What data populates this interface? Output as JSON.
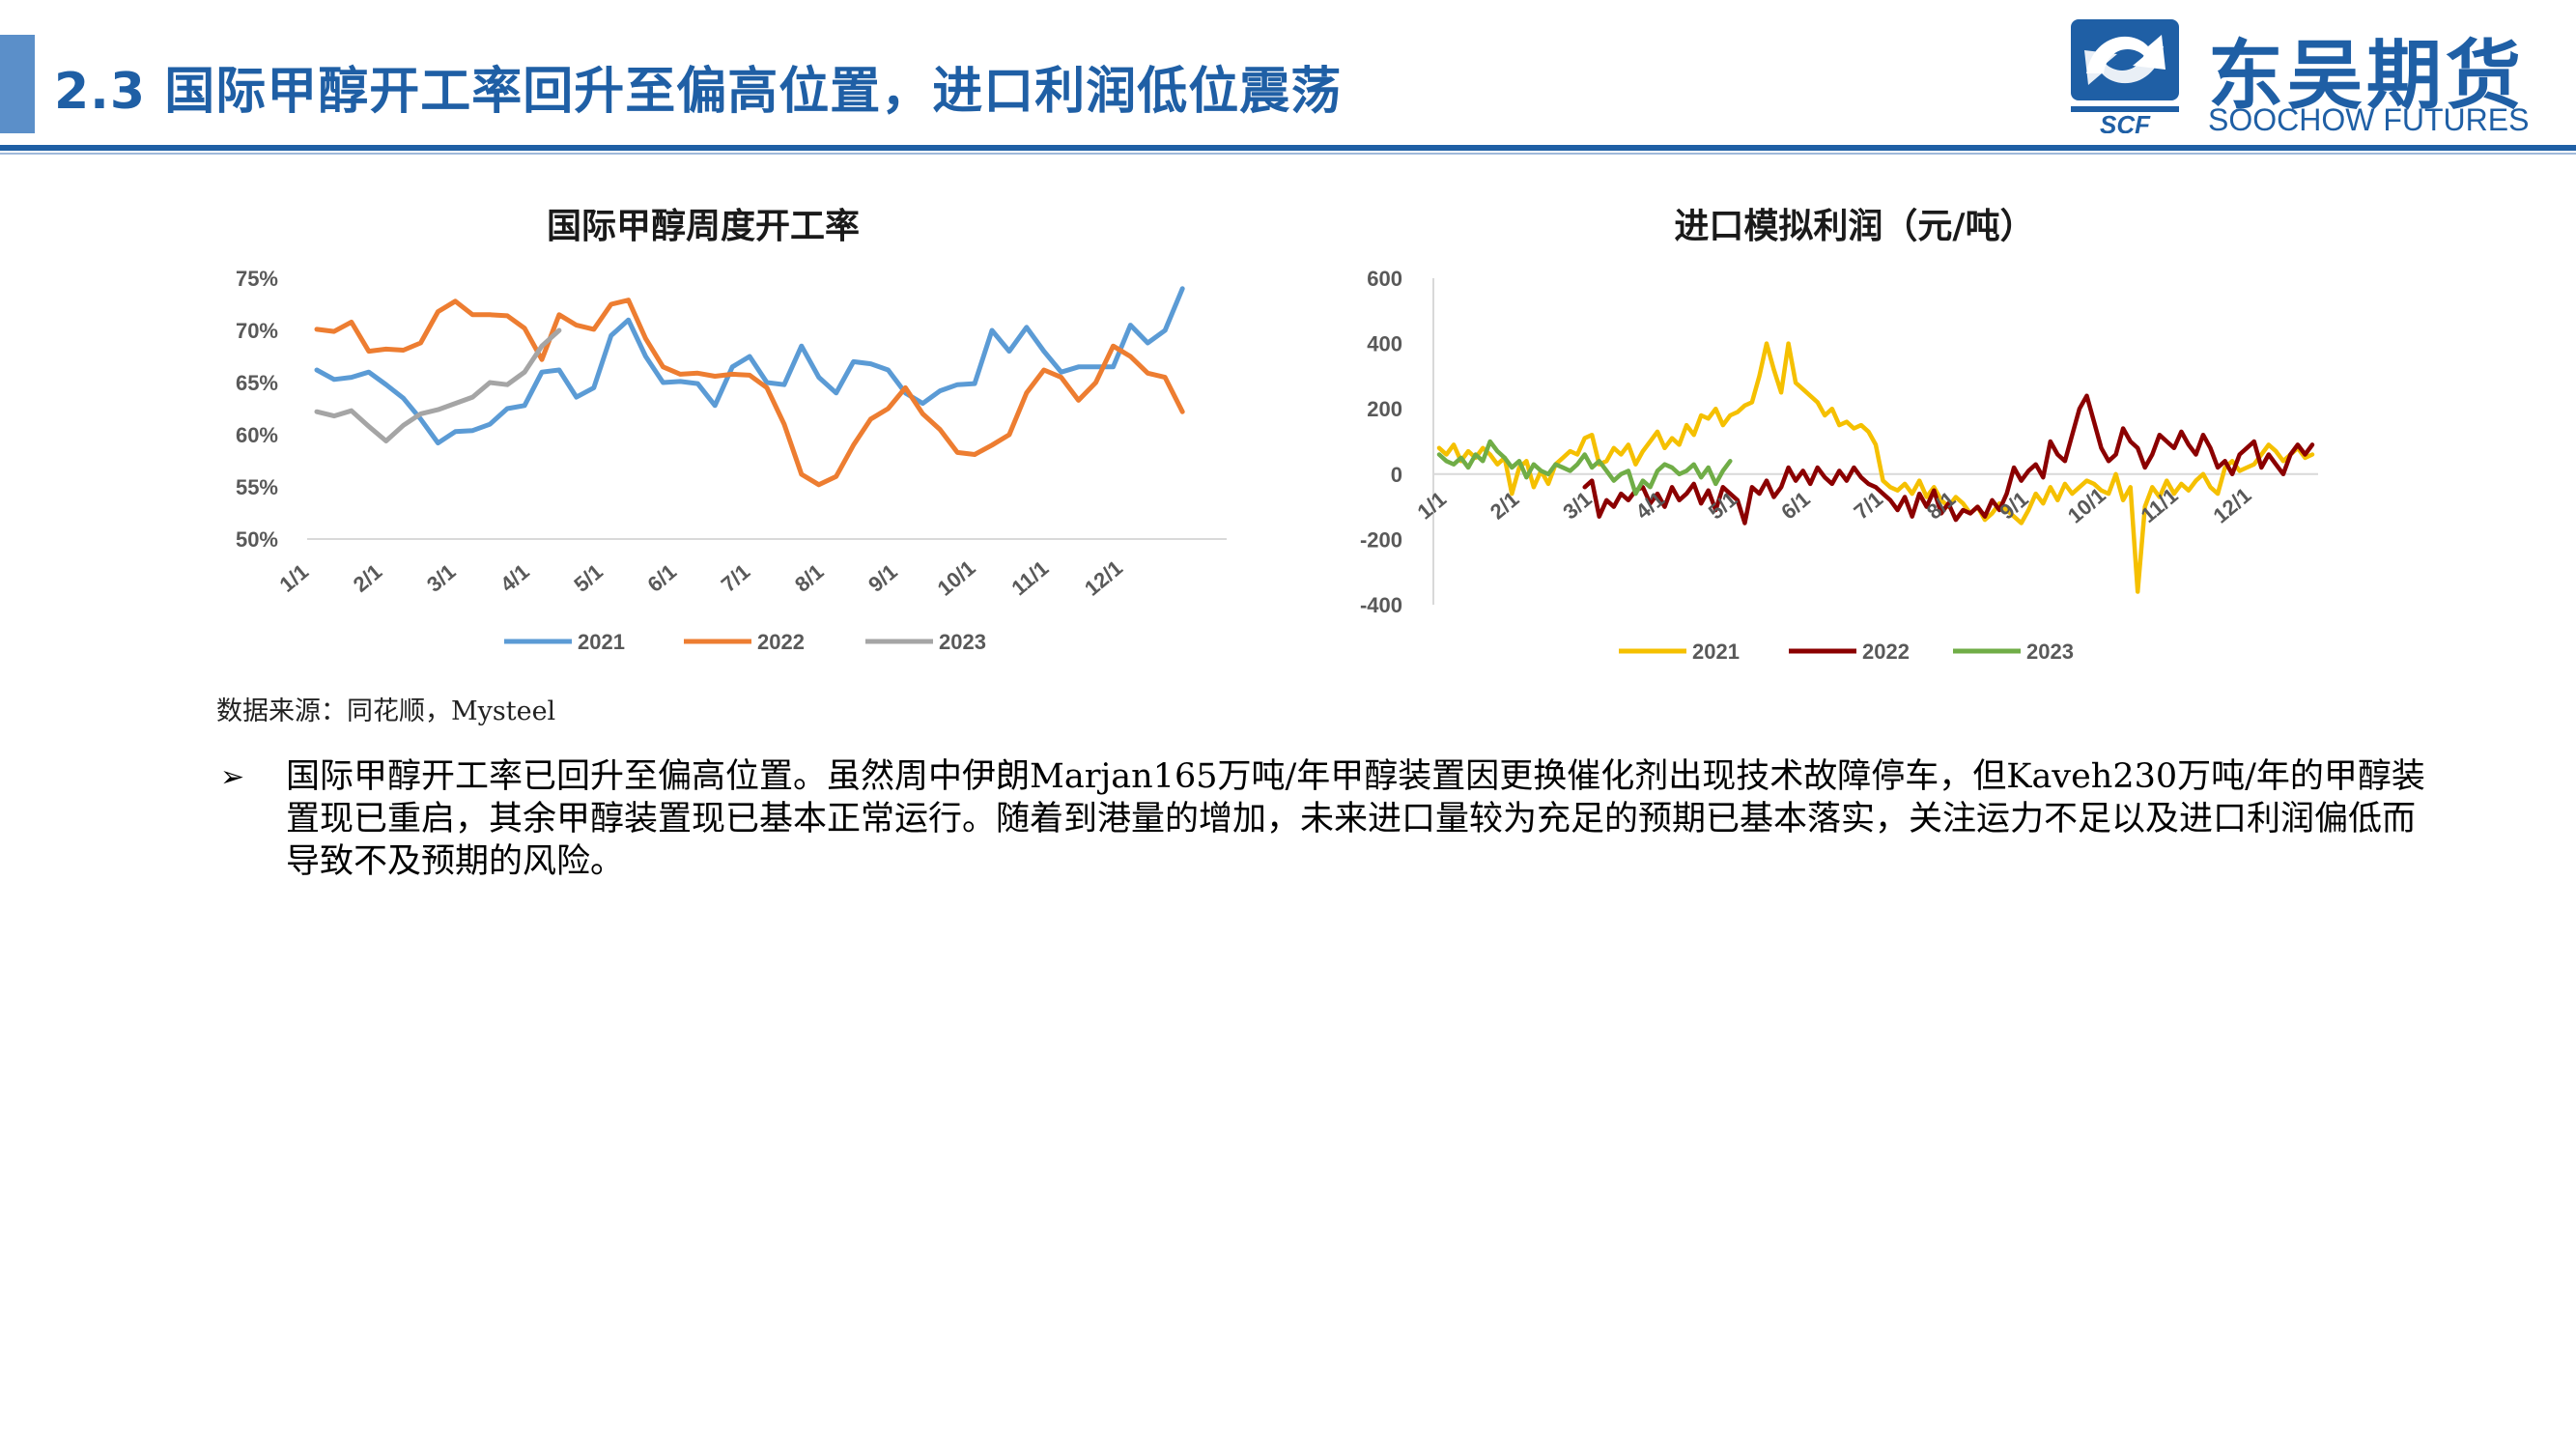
{
  "header": {
    "title": "2.3 国际甲醇开工率回升至偏高位置，进口利润低位震荡",
    "accent_color": "#1f5fa5"
  },
  "logo": {
    "cn_text": "东吴期货",
    "en_text": "SOOCHOW FUTURES",
    "mark_text": "SCF",
    "color": "#1f5fa5"
  },
  "chart_data": [
    {
      "type": "line",
      "title": "国际甲醇周度开工率",
      "xlabel": "",
      "ylabel": "",
      "x_ticks": [
        "1/1",
        "2/1",
        "3/1",
        "4/1",
        "5/1",
        "6/1",
        "7/1",
        "8/1",
        "9/1",
        "10/1",
        "11/1",
        "12/1"
      ],
      "y_ticks": [
        "75%",
        "70%",
        "65%",
        "60%",
        "55%",
        "50%"
      ],
      "ylim": [
        50,
        75
      ],
      "x_unit": "week",
      "xlim": [
        1,
        53
      ],
      "grid": false,
      "legend_position": "bottom",
      "series": [
        {
          "name": "2021",
          "color": "#5b9bd5",
          "values": [
            66.2,
            65.3,
            65.5,
            66.0,
            64.8,
            63.5,
            61.5,
            59.2,
            60.3,
            60.4,
            61.0,
            62.5,
            62.8,
            66.0,
            66.2,
            63.6,
            64.5,
            69.5,
            71.0,
            67.5,
            65.0,
            65.1,
            64.9,
            62.8,
            66.5,
            67.5,
            65.0,
            64.8,
            68.5,
            65.5,
            64.0,
            67.0,
            66.8,
            66.2,
            64.0,
            63.0,
            64.2,
            64.8,
            64.9,
            70.0,
            68.0,
            70.3,
            68.0,
            66.0,
            66.5,
            66.5,
            66.5,
            70.5,
            68.8,
            70.0,
            74.0
          ]
        },
        {
          "name": "2022",
          "color": "#ed7d31",
          "values": [
            70.1,
            69.9,
            70.8,
            68.0,
            68.2,
            68.1,
            68.8,
            71.8,
            72.8,
            71.5,
            71.5,
            71.4,
            70.2,
            67.2,
            71.5,
            70.5,
            70.1,
            72.5,
            72.9,
            69.2,
            66.5,
            65.8,
            65.9,
            65.6,
            65.8,
            65.7,
            64.5,
            61.0,
            56.2,
            55.2,
            56.0,
            59.0,
            61.5,
            62.5,
            64.5,
            62.0,
            60.5,
            58.3,
            58.1,
            59.0,
            60.0,
            64.0,
            66.2,
            65.5,
            63.3,
            65.0,
            68.5,
            67.5,
            65.9,
            65.5,
            62.2
          ]
        },
        {
          "name": "2023",
          "color": "#a5a5a5",
          "values": [
            62.2,
            61.8,
            62.3,
            60.8,
            59.4,
            60.9,
            62.0,
            62.4,
            63.0,
            63.6,
            65.0,
            64.8,
            66.0,
            68.5,
            70.0
          ]
        }
      ]
    },
    {
      "type": "line",
      "title": "进口模拟利润（元/吨）",
      "xlabel": "",
      "ylabel": "",
      "x_ticks": [
        "1/1",
        "2/1",
        "3/1",
        "4/1",
        "5/1",
        "6/1",
        "7/1",
        "8/1",
        "9/1",
        "10/1",
        "11/1",
        "12/1"
      ],
      "y_ticks": [
        "600",
        "400",
        "200",
        "0",
        "-200",
        "-400"
      ],
      "ylim": [
        -400,
        600
      ],
      "x_unit": "month",
      "xlim": [
        1,
        13
      ],
      "grid": false,
      "legend_position": "bottom",
      "series": [
        {
          "name": "2021",
          "color": "#f5c000",
          "x": [
            1.0,
            1.1,
            1.2,
            1.3,
            1.4,
            1.5,
            1.6,
            1.7,
            1.8,
            1.9,
            2.0,
            2.1,
            2.2,
            2.3,
            2.4,
            2.5,
            2.6,
            2.7,
            2.8,
            2.9,
            3.0,
            3.1,
            3.2,
            3.3,
            3.4,
            3.5,
            3.6,
            3.7,
            3.8,
            3.9,
            4.0,
            4.1,
            4.2,
            4.3,
            4.4,
            4.5,
            4.6,
            4.7,
            4.8,
            4.9,
            5.0,
            5.1,
            5.2,
            5.3,
            5.4,
            5.5,
            5.6,
            5.7,
            5.8,
            5.9,
            6.0,
            6.1,
            6.2,
            6.3,
            6.4,
            6.5,
            6.6,
            6.7,
            6.8,
            6.9,
            7.0,
            7.1,
            7.2,
            7.3,
            7.4,
            7.5,
            7.6,
            7.7,
            7.8,
            7.9,
            8.0,
            8.1,
            8.2,
            8.3,
            8.4,
            8.5,
            8.6,
            8.7,
            8.8,
            8.9,
            9.0,
            9.1,
            9.2,
            9.3,
            9.4,
            9.5,
            9.6,
            9.7,
            9.8,
            9.9,
            10.0,
            10.1,
            10.2,
            10.3,
            10.4,
            10.5,
            10.6,
            10.7,
            10.8,
            10.9,
            11.0,
            11.1,
            11.2,
            11.3,
            11.4,
            11.5,
            11.6,
            11.7,
            11.8,
            11.9,
            12.0,
            12.1,
            12.2,
            12.3,
            12.4,
            12.5,
            12.6,
            12.7,
            12.8,
            12.9,
            13.0
          ],
          "values": [
            80,
            60,
            90,
            40,
            70,
            50,
            80,
            60,
            30,
            50,
            -60,
            20,
            40,
            -40,
            10,
            -30,
            30,
            50,
            70,
            60,
            110,
            120,
            30,
            40,
            80,
            60,
            90,
            30,
            70,
            100,
            130,
            80,
            110,
            90,
            150,
            120,
            180,
            170,
            200,
            150,
            180,
            190,
            210,
            220,
            300,
            400,
            320,
            250,
            400,
            280,
            260,
            240,
            220,
            180,
            200,
            150,
            160,
            140,
            150,
            130,
            90,
            -20,
            -40,
            -50,
            -30,
            -60,
            -20,
            -70,
            -40,
            -80,
            -100,
            -70,
            -90,
            -120,
            -100,
            -140,
            -120,
            -90,
            -110,
            -130,
            -150,
            -110,
            -60,
            -90,
            -40,
            -80,
            -30,
            -60,
            -40,
            -20,
            -30,
            -50,
            -60,
            0,
            -80,
            -40,
            -360,
            -100,
            -40,
            -70,
            -20,
            -60,
            -30,
            -50,
            -20,
            0,
            -40,
            -60,
            20,
            40,
            10,
            20,
            30,
            60,
            90,
            70,
            40,
            60,
            80,
            50,
            60
          ]
        },
        {
          "name": "2022",
          "color": "#8b0000",
          "x": [
            3.0,
            3.1,
            3.2,
            3.3,
            3.4,
            3.5,
            3.6,
            3.7,
            3.8,
            3.9,
            4.0,
            4.1,
            4.2,
            4.3,
            4.4,
            4.5,
            4.6,
            4.7,
            4.8,
            4.9,
            5.0,
            5.1,
            5.2,
            5.3,
            5.4,
            5.5,
            5.6,
            5.7,
            5.8,
            5.9,
            6.0,
            6.1,
            6.2,
            6.3,
            6.4,
            6.5,
            6.6,
            6.7,
            6.8,
            6.9,
            7.0,
            7.1,
            7.2,
            7.3,
            7.4,
            7.5,
            7.6,
            7.7,
            7.8,
            7.9,
            8.0,
            8.1,
            8.2,
            8.3,
            8.4,
            8.5,
            8.6,
            8.7,
            8.8,
            8.9,
            9.0,
            9.1,
            9.2,
            9.3,
            9.4,
            9.5,
            9.6,
            9.7,
            9.8,
            9.9,
            10.0,
            10.1,
            10.2,
            10.3,
            10.4,
            10.5,
            10.6,
            10.7,
            10.8,
            10.9,
            11.0,
            11.1,
            11.2,
            11.3,
            11.4,
            11.5,
            11.6,
            11.7,
            11.8,
            11.9,
            12.0,
            12.1,
            12.2,
            12.3,
            12.4,
            12.5,
            12.6,
            12.7,
            12.8,
            12.9,
            13.0
          ],
          "values": [
            -40,
            -20,
            -130,
            -80,
            -100,
            -60,
            -80,
            -50,
            -40,
            -90,
            -60,
            -100,
            -40,
            -80,
            -60,
            -30,
            -90,
            -50,
            -110,
            -40,
            -60,
            -80,
            -150,
            -40,
            -60,
            -20,
            -70,
            -40,
            20,
            -20,
            10,
            -30,
            20,
            -10,
            -30,
            10,
            -20,
            20,
            -10,
            -30,
            -40,
            -60,
            -80,
            -110,
            -70,
            -130,
            -60,
            -100,
            -50,
            -120,
            -90,
            -140,
            -110,
            -120,
            -100,
            -130,
            -80,
            -110,
            -60,
            20,
            -20,
            10,
            30,
            -10,
            100,
            60,
            40,
            120,
            200,
            240,
            160,
            80,
            40,
            60,
            140,
            100,
            80,
            20,
            60,
            120,
            100,
            80,
            130,
            90,
            60,
            120,
            80,
            20,
            40,
            0,
            60,
            80,
            100,
            20,
            60,
            30,
            0,
            60,
            90,
            60,
            90
          ]
        },
        {
          "name": "2023",
          "color": "#70ad47",
          "x": [
            1.0,
            1.1,
            1.2,
            1.3,
            1.4,
            1.5,
            1.6,
            1.7,
            1.8,
            1.9,
            2.0,
            2.1,
            2.2,
            2.3,
            2.4,
            2.5,
            2.6,
            2.7,
            2.8,
            2.9,
            3.0,
            3.1,
            3.2,
            3.3,
            3.4,
            3.5,
            3.6,
            3.7,
            3.8,
            3.9,
            4.0,
            4.1,
            4.2,
            4.3,
            4.4,
            4.5,
            4.6,
            4.7,
            4.8,
            4.9,
            5.0
          ],
          "values": [
            60,
            40,
            30,
            50,
            20,
            60,
            40,
            100,
            70,
            50,
            20,
            40,
            -10,
            30,
            10,
            0,
            30,
            20,
            10,
            30,
            60,
            20,
            40,
            10,
            -20,
            0,
            10,
            -60,
            -20,
            -40,
            10,
            30,
            20,
            0,
            10,
            30,
            -10,
            20,
            -30,
            10,
            40
          ]
        }
      ]
    }
  ],
  "source_note": "数据来源：同花顺，Mysteel",
  "bullet": {
    "mark": "➢",
    "text": "国际甲醇开工率已回升至偏高位置。虽然周中伊朗Marjan165万吨/年甲醇装置因更换催化剂出现技术故障停车，但Kaveh230万吨/年的甲醇装置现已重启，其余甲醇装置现已基本正常运行。随着到港量的增加，未来进口量较为充足的预期已基本落实，关注运力不足以及进口利润偏低而导致不及预期的风险。"
  }
}
